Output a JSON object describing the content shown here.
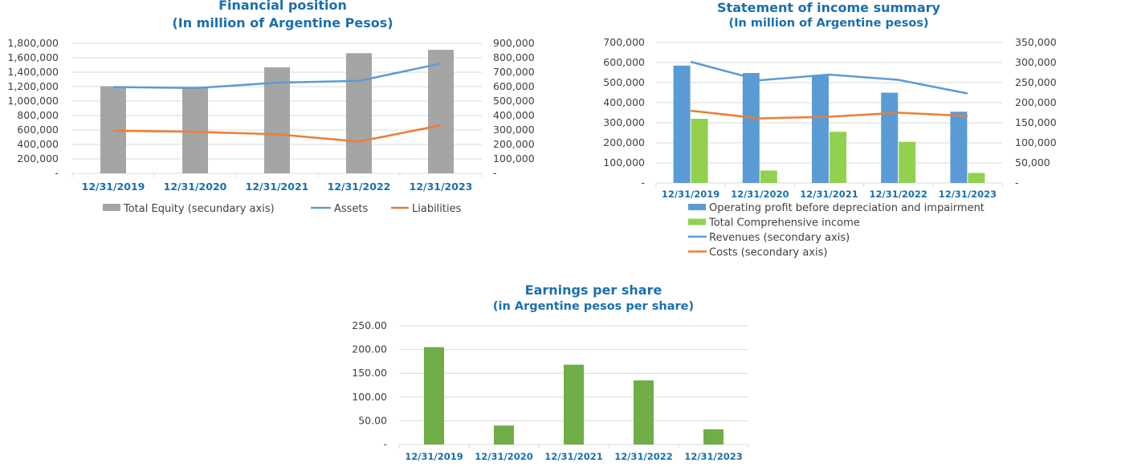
{
  "chart_data": [
    {
      "type": "bar",
      "title": "Financial position",
      "subtitle": "(In million of Argentine Pesos)",
      "categories": [
        "12/31/2019",
        "12/31/2020",
        "12/31/2021",
        "12/31/2022",
        "12/31/2023"
      ],
      "y_ticks": [
        "-",
        "200,000",
        "400,000",
        "600,000",
        "800,000",
        "1,000,000",
        "1,200,000",
        "1,400,000",
        "1,600,000",
        "1,800,000"
      ],
      "y2_ticks": [
        "-",
        "100,000",
        "200,000",
        "300,000",
        "400,000",
        "500,000",
        "600,000",
        "700,000",
        "800,000",
        "900,000"
      ],
      "ylim": [
        0,
        1800000
      ],
      "y2lim": [
        0,
        900000
      ],
      "series": [
        {
          "name": "Total Equity (secundary axis)",
          "type": "bar",
          "axis": "secondary",
          "color": "#a5a5a5",
          "values": [
            603000,
            598000,
            734000,
            832000,
            855000
          ]
        },
        {
          "name": "Assets",
          "type": "line",
          "axis": "primary",
          "color": "#5b9bd5",
          "values": [
            1195000,
            1180000,
            1255000,
            1280000,
            1520000
          ]
        },
        {
          "name": "Liabilities",
          "type": "line",
          "axis": "primary",
          "color": "#ed7d31",
          "values": [
            590000,
            575000,
            540000,
            440000,
            665000
          ]
        }
      ],
      "legend_position": "bottom",
      "grid": true
    },
    {
      "type": "bar",
      "title": "Statement of income summary",
      "subtitle": "(In million of Argentine pesos)",
      "categories": [
        "12/31/2019",
        "12/31/2020",
        "12/31/2021",
        "12/31/2022",
        "12/31/2023"
      ],
      "y_ticks": [
        "-",
        "100,000",
        "200,000",
        "300,000",
        "400,000",
        "500,000",
        "600,000",
        "700,000"
      ],
      "y2_ticks": [
        "-",
        "50,000",
        "100,000",
        "150,000",
        "200,000",
        "250,000",
        "300,000",
        "350,000"
      ],
      "ylim": [
        0,
        700000
      ],
      "y2lim": [
        0,
        350000
      ],
      "series": [
        {
          "name": "Operating profit before depreciation and impairment",
          "type": "bar",
          "axis": "primary",
          "color": "#5b9bd5",
          "values": [
            585000,
            548000,
            538000,
            450000,
            355000
          ]
        },
        {
          "name": "Total Comprehensive income",
          "type": "bar",
          "axis": "primary",
          "color": "#92d050",
          "values": [
            320000,
            62000,
            255000,
            205000,
            50000
          ]
        },
        {
          "name": "Revenues (secondary axis)",
          "type": "line",
          "axis": "secondary",
          "color": "#5b9bd5",
          "values": [
            302000,
            256000,
            270000,
            257000,
            223000
          ]
        },
        {
          "name": "Costs (secondary axis)",
          "type": "line",
          "axis": "secondary",
          "color": "#ed7d31",
          "values": [
            180000,
            161000,
            165000,
            175000,
            167000
          ]
        }
      ],
      "legend_position": "bottom",
      "grid": true
    },
    {
      "type": "bar",
      "title": "Earnings per share",
      "subtitle": "(in Argentine pesos per share)",
      "categories": [
        "12/31/2019",
        "12/31/2020",
        "12/31/2021",
        "12/31/2022",
        "12/31/2023"
      ],
      "y_ticks": [
        "-",
        "50.00",
        "100.00",
        "150.00",
        "200.00",
        "250.00"
      ],
      "ylim": [
        0,
        250
      ],
      "series": [
        {
          "name": "",
          "type": "bar",
          "axis": "primary",
          "color": "#70ad47",
          "values": [
            205,
            40,
            168,
            135,
            32
          ]
        }
      ],
      "grid": true
    }
  ]
}
